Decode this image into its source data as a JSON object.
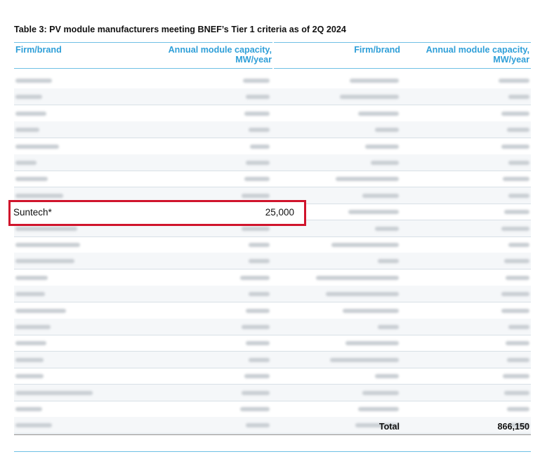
{
  "table": {
    "title": "Table 3: PV module manufacturers meeting BNEF’s Tier 1 criteria as of 2Q 2024",
    "headers": {
      "firm_left": "Firm/brand",
      "capacity_left_1": "Annual module capacity,",
      "capacity_left_2": "MW/year",
      "firm_right": "Firm/brand",
      "capacity_right_1": "Annual module capacity,",
      "capacity_right_2": "MW/year"
    },
    "highlighted_row": {
      "firm": "Suntech*",
      "capacity": "25,000"
    },
    "total": {
      "label": "Total",
      "value": "866,150"
    }
  },
  "colors": {
    "header": "#2f9fd8",
    "rule": "#6fc0e5",
    "highlight_border": "#d0142c"
  }
}
